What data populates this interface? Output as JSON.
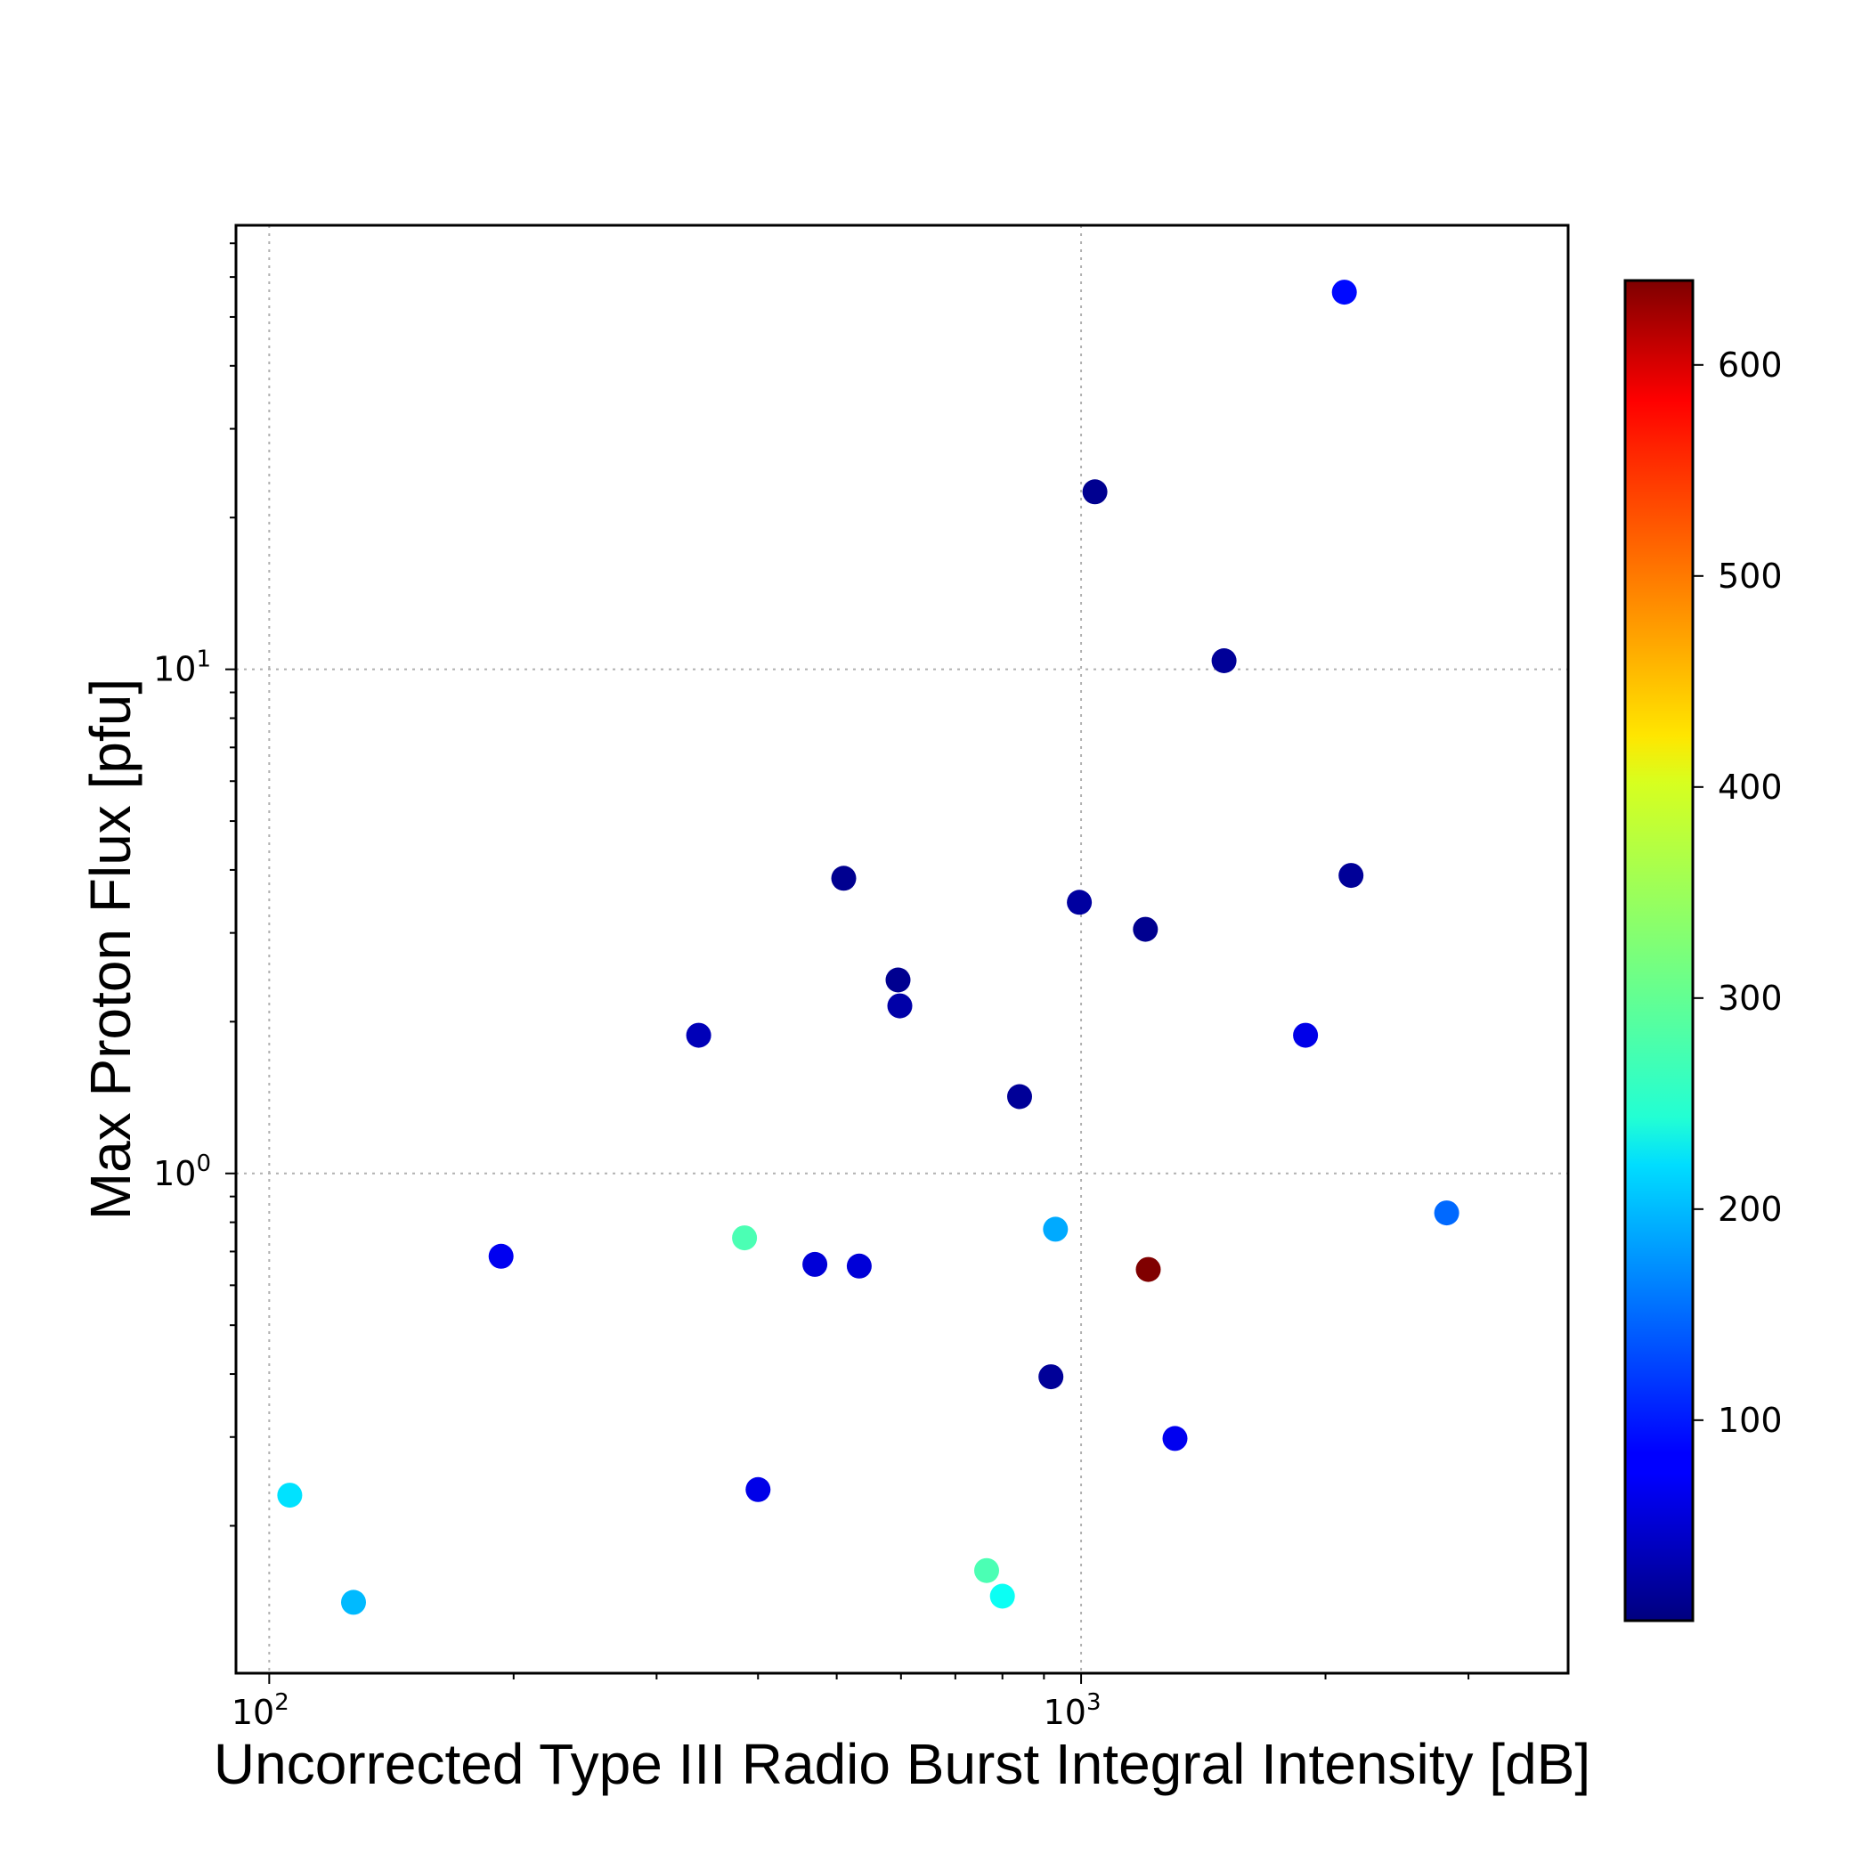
{
  "chart_data": {
    "type": "scatter",
    "title": "",
    "xlabel": "Uncorrected Type III Radio Burst Integral Intensity [dB]",
    "ylabel": "Max Proton Flux [pfu]",
    "xscale": "log",
    "yscale": "log",
    "xlim": [
      91,
      3980
    ],
    "ylim": [
      0.102,
      76
    ],
    "grid": "dotted at major decades",
    "x_ticks": [
      {
        "base": "10",
        "exp": "2",
        "value": 100
      },
      {
        "base": "10",
        "exp": "3",
        "value": 1000
      }
    ],
    "y_ticks": [
      {
        "base": "10",
        "exp": "0",
        "value": 1
      },
      {
        "base": "10",
        "exp": "1",
        "value": 10
      }
    ],
    "colormap": "jet",
    "colorbar": {
      "label": "",
      "range": [
        5,
        640
      ],
      "ticks": [
        "100",
        "200",
        "300",
        "400",
        "500",
        "600"
      ],
      "tick_values": [
        100,
        200,
        300,
        400,
        500,
        600
      ]
    },
    "points": [
      {
        "x": 2110,
        "y": 56,
        "c": 90
      },
      {
        "x": 1040,
        "y": 22.5,
        "c": 15
      },
      {
        "x": 1500,
        "y": 10.4,
        "c": 20
      },
      {
        "x": 2150,
        "y": 3.9,
        "c": 20
      },
      {
        "x": 510,
        "y": 3.85,
        "c": 15
      },
      {
        "x": 995,
        "y": 3.45,
        "c": 25
      },
      {
        "x": 1200,
        "y": 3.05,
        "c": 15
      },
      {
        "x": 595,
        "y": 2.42,
        "c": 15
      },
      {
        "x": 598,
        "y": 2.15,
        "c": 30
      },
      {
        "x": 338,
        "y": 1.88,
        "c": 40
      },
      {
        "x": 1890,
        "y": 1.88,
        "c": 70
      },
      {
        "x": 840,
        "y": 1.42,
        "c": 20
      },
      {
        "x": 2820,
        "y": 0.835,
        "c": 150
      },
      {
        "x": 930,
        "y": 0.775,
        "c": 190
      },
      {
        "x": 385,
        "y": 0.745,
        "c": 290
      },
      {
        "x": 193,
        "y": 0.685,
        "c": 75
      },
      {
        "x": 470,
        "y": 0.66,
        "c": 60
      },
      {
        "x": 533,
        "y": 0.655,
        "c": 60
      },
      {
        "x": 1210,
        "y": 0.645,
        "c": 640
      },
      {
        "x": 918,
        "y": 0.395,
        "c": 20
      },
      {
        "x": 1305,
        "y": 0.298,
        "c": 75
      },
      {
        "x": 400,
        "y": 0.236,
        "c": 70
      },
      {
        "x": 106,
        "y": 0.23,
        "c": 225
      },
      {
        "x": 765,
        "y": 0.163,
        "c": 290
      },
      {
        "x": 800,
        "y": 0.145,
        "c": 250
      },
      {
        "x": 127,
        "y": 0.141,
        "c": 200
      }
    ]
  }
}
